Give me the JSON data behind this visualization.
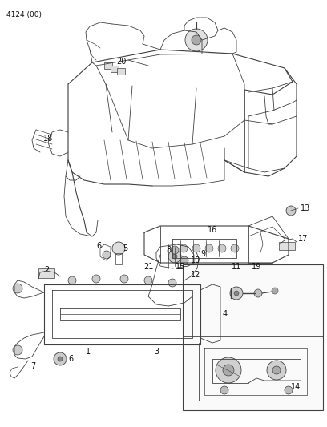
{
  "title": "4124 (00)",
  "bg_color": "#ffffff",
  "line_color": "#404040",
  "text_color": "#111111",
  "fig_width": 4.08,
  "fig_height": 5.33,
  "dpi": 100
}
